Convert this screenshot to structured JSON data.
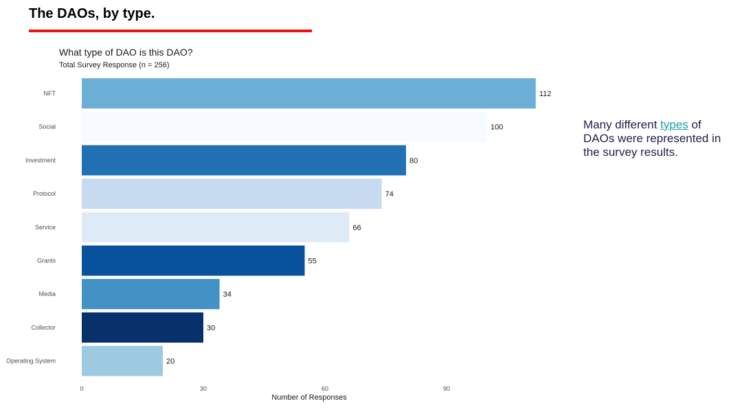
{
  "slide": {
    "title": "The DAOs, by type.",
    "accent_color": "#ee1111"
  },
  "note": {
    "before": "Many different ",
    "link_text": "types",
    "after": " of DAOs were represented in the survey results.",
    "text_color": "#1f1f4a",
    "link_color": "#1aa3a3"
  },
  "chart_data": {
    "type": "bar",
    "orientation": "horizontal",
    "title": "What type of DAO is this DAO?",
    "subtitle": "Total Survey Response (n = 256)",
    "xlabel": "Number of Responses",
    "ylabel": "",
    "categories": [
      "NFT",
      "Social",
      "Investment",
      "Protocol",
      "Service",
      "Grants",
      "Media",
      "Collector",
      "Operating System"
    ],
    "values": [
      112,
      100,
      80,
      74,
      66,
      55,
      34,
      30,
      20
    ],
    "colors": [
      "#6baed6",
      "#f7fbff",
      "#2171b5",
      "#c6dbef",
      "#deebf7",
      "#08519c",
      "#4292c6",
      "#08306b",
      "#9ecae1"
    ],
    "xticks": [
      0,
      30,
      60,
      90
    ],
    "xlim": [
      0,
      120
    ],
    "grid": false,
    "data_labels": true
  }
}
